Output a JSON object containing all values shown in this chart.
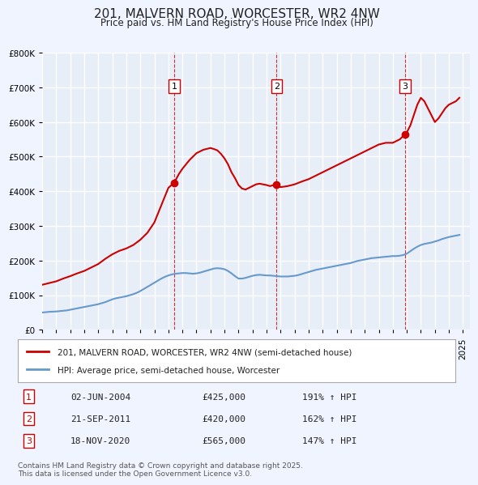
{
  "title": "201, MALVERN ROAD, WORCESTER, WR2 4NW",
  "subtitle": "Price paid vs. HM Land Registry's House Price Index (HPI)",
  "background_color": "#f0f4ff",
  "plot_bg_color": "#e8eef8",
  "grid_color": "#ffffff",
  "ylim": [
    0,
    800000
  ],
  "yticks": [
    0,
    100000,
    200000,
    300000,
    400000,
    500000,
    600000,
    700000,
    800000
  ],
  "ylabel_format": "£{0}K",
  "xlim_start": 1995.0,
  "xlim_end": 2025.5,
  "sale_line_color": "#cc0000",
  "hpi_line_color": "#6699cc",
  "sale_marker_color": "#cc0000",
  "vline_color": "#cc0000",
  "legend1": "201, MALVERN ROAD, WORCESTER, WR2 4NW (semi-detached house)",
  "legend2": "HPI: Average price, semi-detached house, Worcester",
  "transactions": [
    {
      "num": 1,
      "date_str": "02-JUN-2004",
      "date_x": 2004.42,
      "price": 425000,
      "pct": "191%",
      "vline_x": 2004.42
    },
    {
      "num": 2,
      "date_str": "21-SEP-2011",
      "date_x": 2011.72,
      "price": 420000,
      "pct": "162%",
      "vline_x": 2011.72
    },
    {
      "num": 3,
      "date_str": "18-NOV-2020",
      "date_x": 2020.88,
      "price": 565000,
      "pct": "147%",
      "vline_x": 2020.88
    }
  ],
  "footer": "Contains HM Land Registry data © Crown copyright and database right 2025.\nThis data is licensed under the Open Government Licence v3.0.",
  "hpi_data": {
    "x": [
      1995.0,
      1995.25,
      1995.5,
      1995.75,
      1996.0,
      1996.25,
      1996.5,
      1996.75,
      1997.0,
      1997.25,
      1997.5,
      1997.75,
      1998.0,
      1998.25,
      1998.5,
      1998.75,
      1999.0,
      1999.25,
      1999.5,
      1999.75,
      2000.0,
      2000.25,
      2000.5,
      2000.75,
      2001.0,
      2001.25,
      2001.5,
      2001.75,
      2002.0,
      2002.25,
      2002.5,
      2002.75,
      2003.0,
      2003.25,
      2003.5,
      2003.75,
      2004.0,
      2004.25,
      2004.5,
      2004.75,
      2005.0,
      2005.25,
      2005.5,
      2005.75,
      2006.0,
      2006.25,
      2006.5,
      2006.75,
      2007.0,
      2007.25,
      2007.5,
      2007.75,
      2008.0,
      2008.25,
      2008.5,
      2008.75,
      2009.0,
      2009.25,
      2009.5,
      2009.75,
      2010.0,
      2010.25,
      2010.5,
      2010.75,
      2011.0,
      2011.25,
      2011.5,
      2011.75,
      2012.0,
      2012.25,
      2012.5,
      2012.75,
      2013.0,
      2013.25,
      2013.5,
      2013.75,
      2014.0,
      2014.25,
      2014.5,
      2014.75,
      2015.0,
      2015.25,
      2015.5,
      2015.75,
      2016.0,
      2016.25,
      2016.5,
      2016.75,
      2017.0,
      2017.25,
      2017.5,
      2017.75,
      2018.0,
      2018.25,
      2018.5,
      2018.75,
      2019.0,
      2019.25,
      2019.5,
      2019.75,
      2020.0,
      2020.25,
      2020.5,
      2020.75,
      2021.0,
      2021.25,
      2021.5,
      2021.75,
      2022.0,
      2022.25,
      2022.5,
      2022.75,
      2023.0,
      2023.25,
      2023.5,
      2023.75,
      2024.0,
      2024.25,
      2024.5,
      2024.75
    ],
    "y": [
      50000,
      51000,
      52000,
      52500,
      53000,
      54000,
      55000,
      56000,
      58000,
      60000,
      62000,
      64000,
      66000,
      68000,
      70000,
      72000,
      74000,
      77000,
      80000,
      84000,
      88000,
      91000,
      93000,
      95000,
      97000,
      100000,
      103000,
      107000,
      112000,
      118000,
      124000,
      130000,
      136000,
      142000,
      148000,
      153000,
      157000,
      160000,
      162000,
      163000,
      164000,
      164000,
      163000,
      162000,
      163000,
      165000,
      168000,
      171000,
      174000,
      177000,
      178000,
      177000,
      175000,
      170000,
      163000,
      155000,
      148000,
      148000,
      150000,
      153000,
      156000,
      158000,
      159000,
      158000,
      157000,
      157000,
      156000,
      155000,
      154000,
      154000,
      154000,
      155000,
      156000,
      158000,
      161000,
      164000,
      167000,
      170000,
      173000,
      175000,
      177000,
      179000,
      181000,
      183000,
      185000,
      187000,
      189000,
      191000,
      193000,
      196000,
      199000,
      201000,
      203000,
      205000,
      207000,
      208000,
      209000,
      210000,
      211000,
      212000,
      213000,
      213000,
      214000,
      216000,
      220000,
      227000,
      234000,
      240000,
      245000,
      248000,
      250000,
      252000,
      255000,
      258000,
      262000,
      265000,
      268000,
      270000,
      272000,
      274000
    ]
  },
  "sale_data": {
    "x": [
      1995.0,
      1995.5,
      1996.0,
      1996.5,
      1997.0,
      1997.5,
      1998.0,
      1998.5,
      1999.0,
      1999.5,
      2000.0,
      2000.5,
      2001.0,
      2001.5,
      2002.0,
      2002.5,
      2003.0,
      2003.5,
      2004.0,
      2004.42,
      2004.75,
      2005.0,
      2005.5,
      2006.0,
      2006.5,
      2007.0,
      2007.25,
      2007.5,
      2007.75,
      2008.0,
      2008.25,
      2008.5,
      2008.75,
      2009.0,
      2009.25,
      2009.5,
      2009.75,
      2010.0,
      2010.25,
      2010.5,
      2010.75,
      2011.0,
      2011.25,
      2011.5,
      2011.72,
      2011.75,
      2012.0,
      2012.5,
      2013.0,
      2013.5,
      2014.0,
      2014.5,
      2015.0,
      2015.5,
      2016.0,
      2016.5,
      2017.0,
      2017.5,
      2018.0,
      2018.5,
      2019.0,
      2019.5,
      2020.0,
      2020.5,
      2020.88,
      2021.0,
      2021.25,
      2021.5,
      2021.75,
      2022.0,
      2022.25,
      2022.5,
      2022.75,
      2023.0,
      2023.25,
      2023.5,
      2023.75,
      2024.0,
      2024.25,
      2024.5,
      2024.75
    ],
    "y": [
      130000,
      135000,
      140000,
      148000,
      155000,
      163000,
      170000,
      180000,
      190000,
      205000,
      218000,
      228000,
      235000,
      245000,
      260000,
      280000,
      310000,
      360000,
      410000,
      425000,
      450000,
      465000,
      490000,
      510000,
      520000,
      525000,
      522000,
      518000,
      508000,
      495000,
      478000,
      455000,
      438000,
      418000,
      408000,
      405000,
      410000,
      415000,
      420000,
      422000,
      420000,
      418000,
      415000,
      418000,
      420000,
      415000,
      412000,
      415000,
      420000,
      428000,
      435000,
      445000,
      455000,
      465000,
      475000,
      485000,
      495000,
      505000,
      515000,
      525000,
      535000,
      540000,
      540000,
      550000,
      565000,
      570000,
      590000,
      620000,
      650000,
      670000,
      660000,
      640000,
      620000,
      600000,
      610000,
      625000,
      640000,
      650000,
      655000,
      660000,
      670000
    ]
  }
}
